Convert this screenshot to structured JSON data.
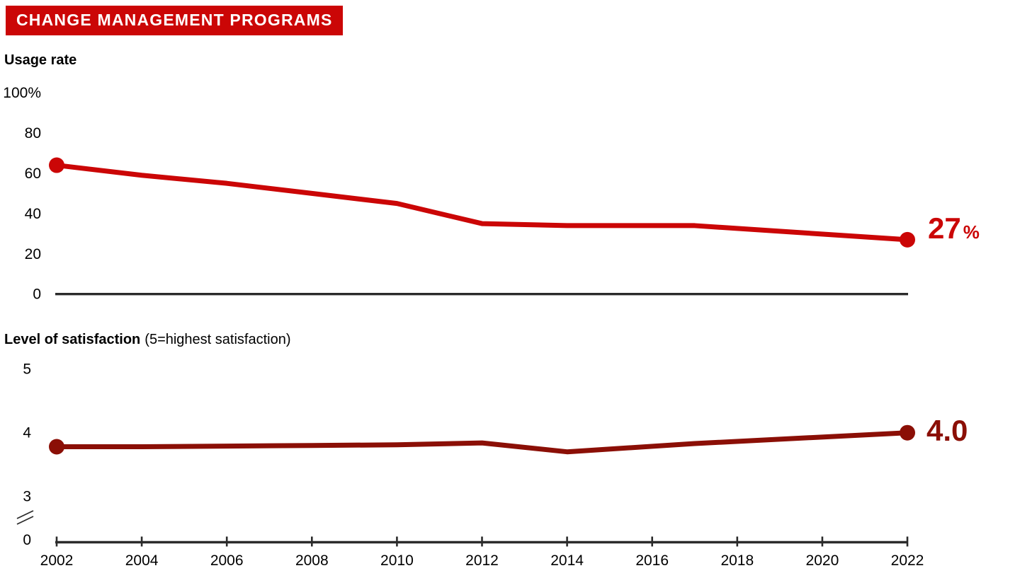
{
  "header": {
    "title": "CHANGE MANAGEMENT PROGRAMS"
  },
  "colors": {
    "banner_red": "#CB0606",
    "bright_red": "#CB0606",
    "dark_red": "#8B0F06",
    "axis": "#2B2B2B",
    "text": "#000000"
  },
  "chart_data": [
    {
      "type": "line",
      "title": "Usage rate",
      "x": [
        2002,
        2004,
        2006,
        2008,
        2010,
        2012,
        2014,
        2017,
        2022
      ],
      "values": [
        64,
        59,
        55,
        50,
        45,
        35,
        34,
        34,
        27
      ],
      "ylim": [
        0,
        100
      ],
      "yticks": [
        {
          "value": 100,
          "label": "100%"
        },
        {
          "value": 80,
          "label": "80"
        },
        {
          "value": 60,
          "label": "60"
        },
        {
          "value": 40,
          "label": "40"
        },
        {
          "value": 20,
          "label": "20"
        },
        {
          "value": 0,
          "label": "0"
        }
      ],
      "end_label": {
        "text": "27",
        "suffix": "%"
      },
      "line_color": "#CB0606",
      "grid": false,
      "legend": "none",
      "markers": "first and last point only"
    },
    {
      "type": "line",
      "title": "Level of satisfaction",
      "subtitle": "(5=highest satisfaction)",
      "x": [
        2002,
        2004,
        2006,
        2008,
        2010,
        2012,
        2014,
        2017,
        2022
      ],
      "values": [
        3.78,
        3.78,
        3.79,
        3.8,
        3.81,
        3.84,
        3.7,
        3.83,
        4.0
      ],
      "ylim_shown": [
        3,
        5
      ],
      "axis_break_between": [
        0,
        3
      ],
      "yticks": [
        {
          "value": 5,
          "label": "5"
        },
        {
          "value": 4,
          "label": "4"
        },
        {
          "value": 3,
          "label": "3"
        },
        {
          "value": 0,
          "label": "0"
        }
      ],
      "end_label": {
        "text": "4.0",
        "suffix": ""
      },
      "line_color": "#8B0F06",
      "grid": false,
      "legend": "none",
      "markers": "first and last point only"
    }
  ],
  "x_axis": {
    "tick_years": [
      2002,
      2004,
      2006,
      2008,
      2010,
      2012,
      2014,
      2016,
      2018,
      2020,
      2022
    ],
    "tick_labels": [
      "2002",
      "2004",
      "2006",
      "2008",
      "2010",
      "2012",
      "2014",
      "2016",
      "2018",
      "2020",
      "2022"
    ]
  }
}
